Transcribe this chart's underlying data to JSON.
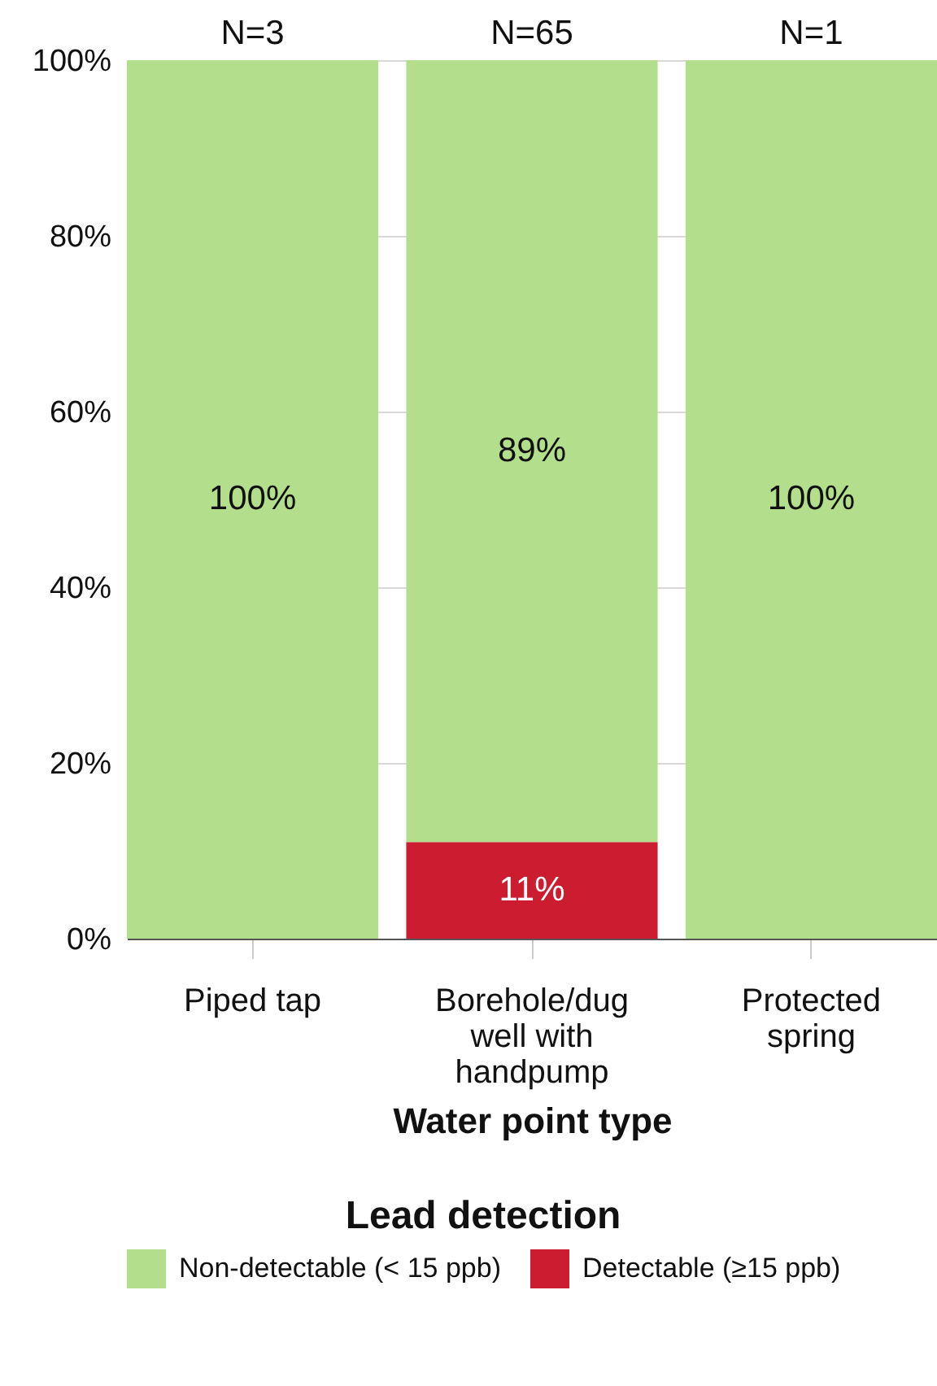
{
  "chart_data": {
    "type": "bar",
    "stacked": true,
    "xlabel": "Water point type",
    "legend_title": "Lead detection",
    "legend": "bottom",
    "grid": "y",
    "categories": [
      "Piped tap",
      "Borehole/dug well with handpump",
      "Protected spring"
    ],
    "series": [
      {
        "name": "Detectable (≥15 ppb)",
        "color": "#cc1c30",
        "values": [
          0,
          11,
          0
        ],
        "value_labels": [
          null,
          "11%",
          null
        ]
      },
      {
        "name": "Non-detectable (< 15 ppb)",
        "color": "#b3df8d",
        "values": [
          100,
          89,
          100
        ],
        "value_labels": [
          "100%",
          "89%",
          "100%"
        ]
      }
    ],
    "ylim": [
      0,
      100
    ],
    "yticks": [
      {
        "value": 0,
        "label": "0%"
      },
      {
        "value": 20,
        "label": "20%"
      },
      {
        "value": 40,
        "label": "40%"
      },
      {
        "value": 60,
        "label": "60%"
      },
      {
        "value": 80,
        "label": "80%"
      },
      {
        "value": 100,
        "label": "100%"
      }
    ],
    "annotations": [
      {
        "text": "N=3",
        "x": "Piped tap",
        "y": 100
      },
      {
        "text": "N=65",
        "x": "Borehole/dug well with handpump",
        "y": 100
      },
      {
        "text": "N=1",
        "x": "Protected spring",
        "y": 100
      }
    ]
  }
}
